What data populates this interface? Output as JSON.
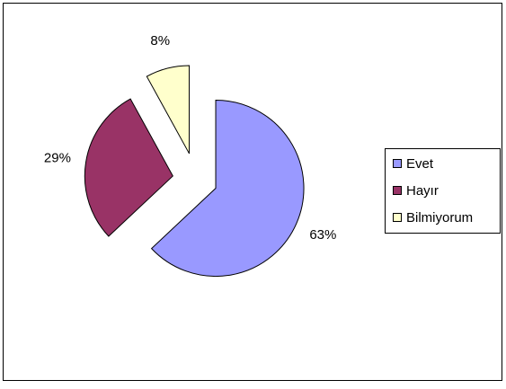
{
  "chart_data": {
    "type": "pie",
    "title": "",
    "slices": [
      {
        "label": "Evet",
        "value": 63,
        "value_label": "63%",
        "color": "#9999ff"
      },
      {
        "label": "Hayır",
        "value": 29,
        "value_label": "29%",
        "color": "#993366"
      },
      {
        "label": "Bilmiyorum",
        "value": 8,
        "value_label": "8%",
        "color": "#ffffcc"
      }
    ],
    "exploded": true,
    "legend_position": "right",
    "colors": {
      "background": "#ffffff",
      "border": "#000000",
      "slice_stroke": "#000000"
    }
  }
}
